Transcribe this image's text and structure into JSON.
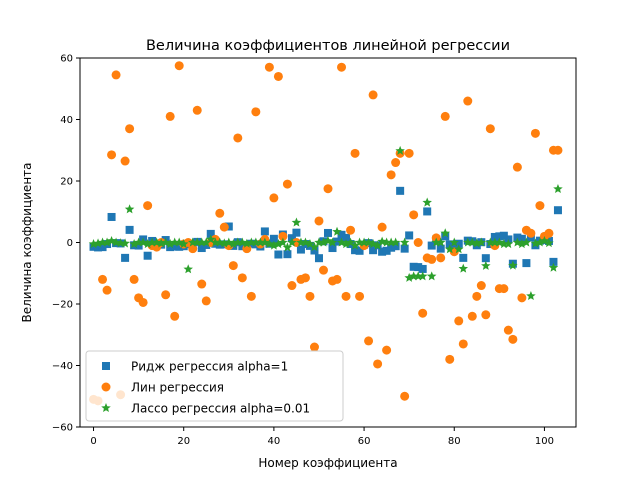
{
  "chart_data": {
    "type": "scatter",
    "title": "Величина коэффициентов линейной регрессии",
    "xlabel": "Номер коэффициента",
    "ylabel": "Величина коэффициента",
    "xlim": [
      -3,
      107
    ],
    "ylim": [
      -60,
      60
    ],
    "xticks": [
      0,
      20,
      40,
      60,
      80,
      100
    ],
    "yticks": [
      -60,
      -40,
      -20,
      0,
      20,
      40,
      60
    ],
    "grid": false,
    "legend_position": "lower-left",
    "series": [
      {
        "name": "Ридж регрессия alpha=1",
        "marker": "square",
        "color": "#1f77b4",
        "x": [
          0,
          1,
          2,
          3,
          4,
          5,
          6,
          7,
          8,
          9,
          10,
          11,
          12,
          13,
          14,
          15,
          16,
          17,
          18,
          19,
          20,
          21,
          22,
          23,
          24,
          25,
          26,
          27,
          28,
          29,
          30,
          31,
          32,
          33,
          34,
          35,
          36,
          37,
          38,
          39,
          40,
          41,
          42,
          43,
          44,
          45,
          46,
          47,
          48,
          49,
          50,
          51,
          52,
          53,
          54,
          55,
          56,
          57,
          58,
          59,
          60,
          61,
          62,
          63,
          64,
          65,
          66,
          67,
          68,
          69,
          70,
          71,
          72,
          73,
          74,
          75,
          76,
          77,
          78,
          79,
          80,
          81,
          82,
          83,
          84,
          85,
          86,
          87,
          88,
          89,
          90,
          91,
          92,
          93,
          94,
          95,
          96,
          97,
          98,
          99,
          100,
          101,
          102,
          103
        ],
        "y": [
          -1.4,
          -1.6,
          -1.5,
          -0.5,
          8.3,
          -0.2,
          -0.3,
          -5.0,
          4.1,
          -0.9,
          -1.0,
          1.0,
          -4.3,
          0.5,
          -0.4,
          -0.7,
          0.8,
          -1.5,
          -1.3,
          -1.4,
          -1.2,
          -0.5,
          -0.6,
          0.2,
          -1.8,
          -0.8,
          2.8,
          -0.4,
          -0.7,
          -0.6,
          5.2,
          -1.1,
          0.1,
          -1.2,
          -0.9,
          -0.4,
          -0.6,
          -1.3,
          3.6,
          -0.4,
          1.2,
          -3.9,
          2.6,
          -3.8,
          1.4,
          3.2,
          -2.3,
          -0.5,
          -1.1,
          -2.6,
          -5.1,
          0.4,
          3.1,
          -1.8,
          0.3,
          2.5,
          1.5,
          -0.5,
          -2.5,
          -2.7,
          -0.7,
          -0.2,
          -2.5,
          -0.9,
          -3.0,
          -2.7,
          -1.7,
          -1.2,
          16.8,
          -2.0,
          2.3,
          -7.9,
          -8.0,
          -8.6,
          10.1,
          -1.0,
          1.0,
          -2.0,
          2.0,
          -0.6,
          -1.3,
          -0.4,
          -5.0,
          0.6,
          0.4,
          -0.9,
          0.1,
          -5.1,
          -0.5,
          1.8,
          2.0,
          2.2,
          1.0,
          -6.9,
          1.6,
          1.2,
          -6.7,
          1.7,
          -0.9,
          0.6,
          0.8,
          0.5,
          -6.3,
          10.5
        ]
      },
      {
        "name": "Лин регрессия",
        "marker": "circle",
        "color": "#ff7f0e",
        "x": [
          0,
          1,
          2,
          3,
          4,
          5,
          6,
          7,
          8,
          9,
          10,
          11,
          12,
          13,
          14,
          15,
          16,
          17,
          18,
          19,
          20,
          21,
          22,
          23,
          24,
          25,
          26,
          27,
          28,
          29,
          30,
          31,
          32,
          33,
          34,
          35,
          36,
          37,
          38,
          39,
          40,
          41,
          42,
          43,
          44,
          45,
          46,
          47,
          48,
          49,
          50,
          51,
          52,
          53,
          54,
          55,
          56,
          57,
          58,
          59,
          60,
          61,
          62,
          63,
          64,
          65,
          66,
          67,
          68,
          69,
          70,
          71,
          72,
          73,
          74,
          75,
          76,
          77,
          78,
          79,
          80,
          81,
          82,
          83,
          84,
          85,
          86,
          87,
          88,
          89,
          90,
          91,
          92,
          93,
          94,
          95,
          96,
          97,
          98,
          99,
          100,
          101,
          102,
          103
        ],
        "y": [
          -51,
          -51.5,
          -12,
          -15.5,
          28.5,
          54.5,
          -49.5,
          26.5,
          37,
          -12,
          -18,
          -19.5,
          12,
          -1,
          -1.5,
          0,
          -17,
          41,
          -24,
          57.5,
          -0.5,
          0,
          -2,
          43,
          -13.5,
          -19,
          0,
          1,
          9.5,
          5,
          -1,
          -7.5,
          34,
          -11.5,
          -2,
          -17.5,
          42.5,
          -0.5,
          1,
          57,
          14.5,
          54,
          2,
          19,
          -14,
          0,
          -12,
          -11.5,
          -17.5,
          -34,
          7,
          -9,
          17.5,
          -12.5,
          -12,
          57,
          -17.5,
          4,
          29,
          -17.5,
          -1,
          -32,
          48,
          -39.5,
          5,
          -35,
          22,
          26,
          29,
          -50,
          29,
          9,
          0,
          -23,
          -5,
          -5.5,
          1.5,
          -5,
          41,
          -38,
          -3,
          -25.5,
          -33,
          46,
          -24,
          -17.5,
          -14,
          -23.5,
          37,
          -1,
          -15,
          -15,
          -28.5,
          -31.5,
          24.5,
          -18,
          4,
          3,
          35.5,
          12,
          2,
          3,
          30,
          30
        ]
      },
      {
        "name": "Лассо регрессия alpha=0.01",
        "marker": "star",
        "color": "#2ca02c",
        "x": [
          0,
          1,
          2,
          3,
          4,
          5,
          6,
          7,
          8,
          9,
          10,
          11,
          12,
          13,
          14,
          15,
          16,
          17,
          18,
          19,
          20,
          21,
          22,
          23,
          24,
          25,
          26,
          27,
          28,
          29,
          30,
          31,
          32,
          33,
          34,
          35,
          36,
          37,
          38,
          39,
          40,
          41,
          42,
          43,
          44,
          45,
          46,
          47,
          48,
          49,
          50,
          51,
          52,
          53,
          54,
          55,
          56,
          57,
          58,
          59,
          60,
          61,
          62,
          63,
          64,
          65,
          66,
          67,
          68,
          69,
          70,
          71,
          72,
          73,
          74,
          75,
          76,
          77,
          78,
          79,
          80,
          81,
          82,
          83,
          84,
          85,
          86,
          87,
          88,
          89,
          90,
          91,
          92,
          93,
          94,
          95,
          96,
          97,
          98,
          99,
          100,
          101,
          102,
          103
        ],
        "y": [
          -0.5,
          -0.3,
          0,
          0,
          0.5,
          0,
          -0.2,
          -0.3,
          10.8,
          -0.5,
          0,
          0,
          -0.5,
          0,
          0,
          -0.3,
          0,
          -0.5,
          0,
          0,
          -0.5,
          -8.7,
          0,
          0,
          0,
          0,
          1,
          0,
          0,
          -0.3,
          0,
          -0.5,
          0,
          0,
          -0.4,
          0,
          0,
          0,
          0,
          -0.5,
          -1,
          -0.5,
          0,
          -1.6,
          0,
          6.5,
          0,
          0,
          -0.5,
          -1.5,
          0,
          0,
          0.5,
          0,
          3.5,
          0,
          -0.5,
          0,
          -1,
          0,
          0,
          0,
          -0.5,
          -1,
          0.3,
          0,
          0,
          0,
          29.8,
          0,
          -11.5,
          -11,
          -11,
          -11,
          13,
          -11,
          0,
          0,
          3,
          -2.2,
          0,
          -2.2,
          -8.5,
          0,
          0,
          -0.3,
          0,
          -7.6,
          0,
          0,
          0,
          -0.5,
          -0.5,
          -7.5,
          0,
          -0.5,
          0,
          -17.4,
          -0.3,
          0,
          0.5,
          -0.2,
          -8.2,
          17.4
        ]
      }
    ]
  }
}
